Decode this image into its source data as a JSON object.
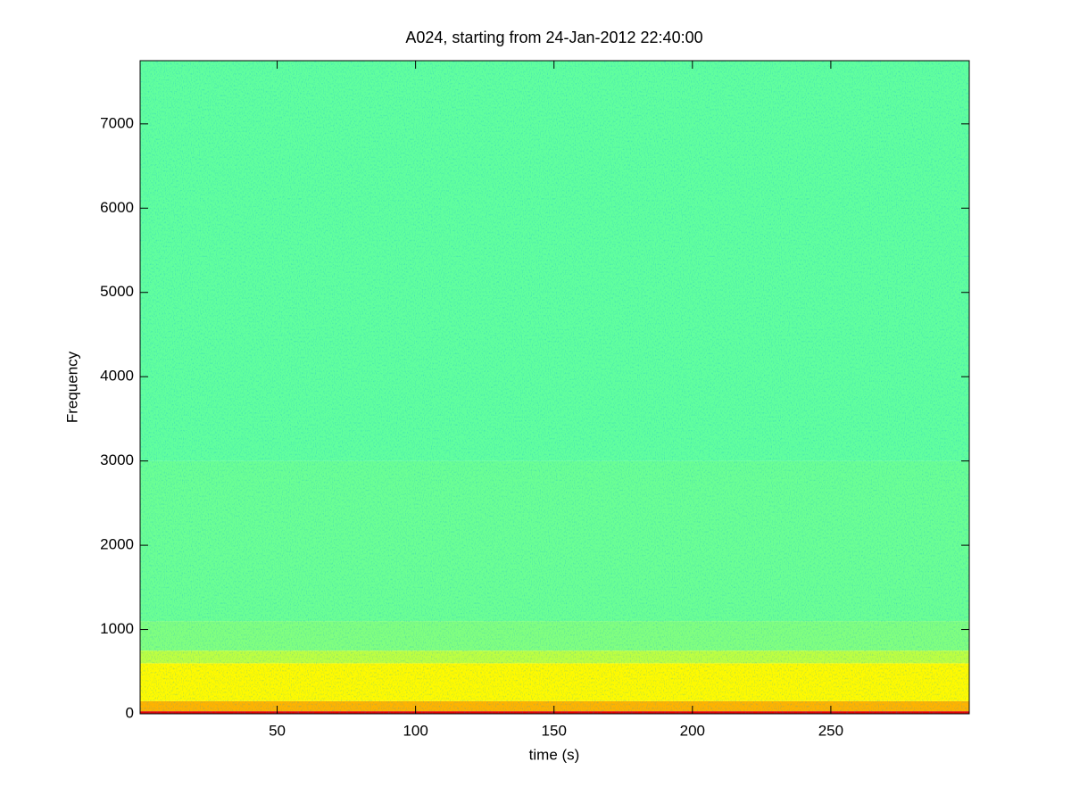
{
  "chart_data": {
    "type": "spectrogram",
    "title": "A024, starting from 24-Jan-2012 22:40:00",
    "x_label": "time (s)",
    "y_label": "Frequency",
    "colormap": "jet",
    "y_bins": [
      0,
      30,
      150,
      600,
      750,
      1100,
      3000,
      7750
    ],
    "levels": [
      0.9,
      0.7,
      0.63,
      0.56,
      0.5,
      0.48,
      0.47
    ],
    "xlim": [
      0.5,
      300
    ],
    "xticks": [
      50,
      100,
      150,
      200,
      250
    ],
    "ylim": [
      0,
      7750
    ],
    "yticks": [
      0,
      1000,
      2000,
      3000,
      4000,
      5000,
      6000,
      7000
    ]
  }
}
